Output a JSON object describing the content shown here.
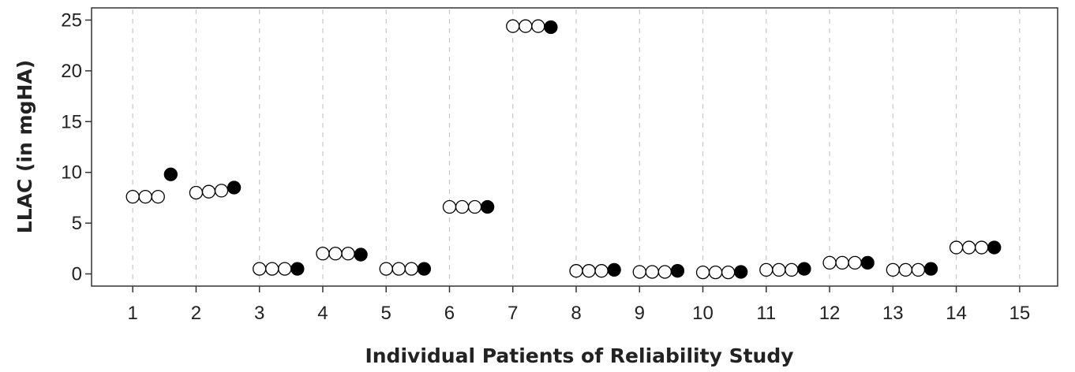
{
  "chart_data": {
    "type": "scatter",
    "xlabel": "Individual Patients of Reliability Study",
    "ylabel": "LLAC (in mgHA)",
    "x_ticks": [
      "1",
      "2",
      "3",
      "4",
      "5",
      "6",
      "7",
      "8",
      "9",
      "10",
      "11",
      "12",
      "13",
      "14",
      "15"
    ],
    "y_ticks": [
      "0",
      "5",
      "10",
      "15",
      "20",
      "25"
    ],
    "xlim": [
      0.35,
      15.6
    ],
    "ylim": [
      -1.2,
      26.2
    ],
    "grid": "vertical-dashed",
    "marker_open_color": "#ffffff",
    "marker_filled_color": "#000000",
    "series": [
      {
        "marker": "open",
        "points": [
          {
            "x": 1.0,
            "y": 7.6
          },
          {
            "x": 1.2,
            "y": 7.6
          },
          {
            "x": 1.4,
            "y": 7.6
          },
          {
            "x": 2.0,
            "y": 8.0
          },
          {
            "x": 2.2,
            "y": 8.1
          },
          {
            "x": 2.4,
            "y": 8.2
          },
          {
            "x": 3.0,
            "y": 0.5
          },
          {
            "x": 3.2,
            "y": 0.5
          },
          {
            "x": 3.4,
            "y": 0.5
          },
          {
            "x": 4.0,
            "y": 2.0
          },
          {
            "x": 4.2,
            "y": 2.0
          },
          {
            "x": 4.4,
            "y": 2.0
          },
          {
            "x": 5.0,
            "y": 0.5
          },
          {
            "x": 5.2,
            "y": 0.5
          },
          {
            "x": 5.4,
            "y": 0.5
          },
          {
            "x": 6.0,
            "y": 6.6
          },
          {
            "x": 6.2,
            "y": 6.6
          },
          {
            "x": 6.4,
            "y": 6.6
          },
          {
            "x": 7.0,
            "y": 24.4
          },
          {
            "x": 7.2,
            "y": 24.4
          },
          {
            "x": 7.4,
            "y": 24.4
          },
          {
            "x": 8.0,
            "y": 0.3
          },
          {
            "x": 8.2,
            "y": 0.3
          },
          {
            "x": 8.4,
            "y": 0.3
          },
          {
            "x": 9.0,
            "y": 0.2
          },
          {
            "x": 9.2,
            "y": 0.2
          },
          {
            "x": 9.4,
            "y": 0.2
          },
          {
            "x": 10.0,
            "y": 0.15
          },
          {
            "x": 10.2,
            "y": 0.15
          },
          {
            "x": 10.4,
            "y": 0.15
          },
          {
            "x": 11.0,
            "y": 0.4
          },
          {
            "x": 11.2,
            "y": 0.4
          },
          {
            "x": 11.4,
            "y": 0.4
          },
          {
            "x": 12.0,
            "y": 1.1
          },
          {
            "x": 12.2,
            "y": 1.1
          },
          {
            "x": 12.4,
            "y": 1.1
          },
          {
            "x": 13.0,
            "y": 0.4
          },
          {
            "x": 13.2,
            "y": 0.4
          },
          {
            "x": 13.4,
            "y": 0.4
          },
          {
            "x": 14.0,
            "y": 2.6
          },
          {
            "x": 14.2,
            "y": 2.6
          },
          {
            "x": 14.4,
            "y": 2.6
          }
        ]
      },
      {
        "marker": "filled",
        "points": [
          {
            "x": 1.6,
            "y": 9.8
          },
          {
            "x": 2.6,
            "y": 8.5
          },
          {
            "x": 3.6,
            "y": 0.5
          },
          {
            "x": 4.6,
            "y": 1.9
          },
          {
            "x": 5.6,
            "y": 0.5
          },
          {
            "x": 6.6,
            "y": 6.6
          },
          {
            "x": 7.6,
            "y": 24.3
          },
          {
            "x": 8.6,
            "y": 0.4
          },
          {
            "x": 9.6,
            "y": 0.3
          },
          {
            "x": 10.6,
            "y": 0.2
          },
          {
            "x": 11.6,
            "y": 0.5
          },
          {
            "x": 12.6,
            "y": 1.1
          },
          {
            "x": 13.6,
            "y": 0.5
          },
          {
            "x": 14.6,
            "y": 2.6
          }
        ]
      }
    ]
  }
}
